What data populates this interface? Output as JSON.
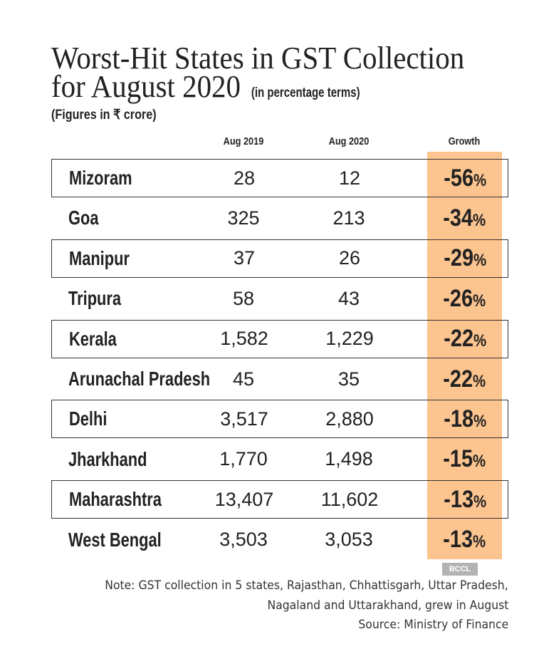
{
  "chart_data": {
    "type": "table",
    "title": "Worst-Hit States in GST Collection for August 2020",
    "title_line1": "Worst-Hit States in GST Collection",
    "title_line2": "for August 2020",
    "subtitle": "(in percentage terms)",
    "units": "(Figures in ₹ crore)",
    "columns": [
      "Aug 2019",
      "Aug 2020",
      "Growth"
    ],
    "rows": [
      {
        "state": "Mizoram",
        "aug2019": "28",
        "aug2020": "12",
        "growth": "-56",
        "pct": "%"
      },
      {
        "state": "Goa",
        "aug2019": "325",
        "aug2020": "213",
        "growth": "-34",
        "pct": "%"
      },
      {
        "state": "Manipur",
        "aug2019": "37",
        "aug2020": "26",
        "growth": "-29",
        "pct": "%"
      },
      {
        "state": "Tripura",
        "aug2019": "58",
        "aug2020": "43",
        "growth": "-26",
        "pct": "%"
      },
      {
        "state": "Kerala",
        "aug2019": "1,582",
        "aug2020": "1,229",
        "growth": "-22",
        "pct": "%"
      },
      {
        "state": "Arunachal Pradesh",
        "aug2019": "45",
        "aug2020": "35",
        "growth": "-22",
        "pct": "%"
      },
      {
        "state": "Delhi",
        "aug2019": "3,517",
        "aug2020": "2,880",
        "growth": "-18",
        "pct": "%"
      },
      {
        "state": "Jharkhand",
        "aug2019": "1,770",
        "aug2020": "1,498",
        "growth": "-15",
        "pct": "%"
      },
      {
        "state": "Maharashtra",
        "aug2019": "13,407",
        "aug2020": "11,602",
        "growth": "-13",
        "pct": "%"
      },
      {
        "state": "West Bengal",
        "aug2019": "3,503",
        "aug2020": "3,053",
        "growth": "-13",
        "pct": "%"
      }
    ],
    "highlight_color": "#fcc48f"
  },
  "watermark": "BCCL",
  "notes": {
    "line1": "Note: GST collection in 5 states, Rajasthan, Chhattisgarh, Uttar Pradesh,",
    "line2": "Nagaland and Uttarakhand, grew in August",
    "source": "Source: Ministry of Finance"
  }
}
